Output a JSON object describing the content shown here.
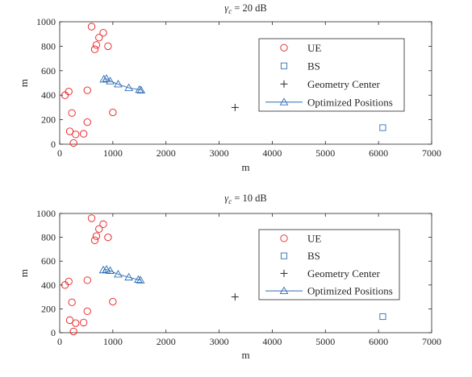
{
  "chart_data": [
    {
      "type": "scatter",
      "title_symbol": "γ",
      "title_subscript": "c",
      "title_rest": " = 20 dB",
      "xlabel": "m",
      "ylabel": "m",
      "xlim": [
        0,
        7000
      ],
      "ylim": [
        0,
        1000
      ],
      "xticks": [
        0,
        1000,
        2000,
        3000,
        4000,
        5000,
        6000,
        7000
      ],
      "yticks": [
        0,
        200,
        400,
        600,
        800,
        1000
      ],
      "grid": false,
      "legend_position": "top-right",
      "series": [
        {
          "name": "UE",
          "marker": "circle",
          "color": "#e8191c",
          "points": [
            [
              600,
              960
            ],
            [
              820,
              910
            ],
            [
              740,
              870
            ],
            [
              910,
              800
            ],
            [
              690,
              810
            ],
            [
              660,
              775
            ],
            [
              520,
              440
            ],
            [
              170,
              430
            ],
            [
              100,
              400
            ],
            [
              230,
              255
            ],
            [
              520,
              180
            ],
            [
              190,
              105
            ],
            [
              300,
              80
            ],
            [
              450,
              85
            ],
            [
              260,
              10
            ],
            [
              1000,
              260
            ]
          ]
        },
        {
          "name": "BS",
          "marker": "square",
          "color": "#2f6db5",
          "points": [
            [
              6080,
              135
            ]
          ]
        },
        {
          "name": "Geometry Center",
          "marker": "plus",
          "color": "#262626",
          "points": [
            [
              3300,
              300
            ]
          ]
        },
        {
          "name": "Optimized Positions",
          "marker": "triangle-line",
          "color": "#2f6db5",
          "points": [
            [
              830,
              530
            ],
            [
              880,
              535
            ],
            [
              950,
              515
            ],
            [
              1100,
              490
            ],
            [
              1300,
              460
            ],
            [
              1500,
              445
            ],
            [
              1530,
              440
            ]
          ]
        }
      ]
    },
    {
      "type": "scatter",
      "title_symbol": "γ",
      "title_subscript": "c",
      "title_rest": " = 10 dB",
      "xlabel": "m",
      "ylabel": "m",
      "xlim": [
        0,
        7000
      ],
      "ylim": [
        0,
        1000
      ],
      "xticks": [
        0,
        1000,
        2000,
        3000,
        4000,
        5000,
        6000,
        7000
      ],
      "yticks": [
        0,
        200,
        400,
        600,
        800,
        1000
      ],
      "grid": false,
      "legend_position": "top-right",
      "series": [
        {
          "name": "UE",
          "marker": "circle",
          "color": "#e8191c",
          "points": [
            [
              600,
              960
            ],
            [
              820,
              910
            ],
            [
              740,
              870
            ],
            [
              910,
              800
            ],
            [
              690,
              810
            ],
            [
              660,
              775
            ],
            [
              520,
              440
            ],
            [
              170,
              430
            ],
            [
              100,
              400
            ],
            [
              230,
              255
            ],
            [
              520,
              180
            ],
            [
              190,
              105
            ],
            [
              300,
              80
            ],
            [
              450,
              85
            ],
            [
              260,
              10
            ],
            [
              1000,
              260
            ]
          ]
        },
        {
          "name": "BS",
          "marker": "square",
          "color": "#2f6db5",
          "points": [
            [
              6080,
              135
            ]
          ]
        },
        {
          "name": "Geometry Center",
          "marker": "plus",
          "color": "#262626",
          "points": [
            [
              3300,
              300
            ]
          ]
        },
        {
          "name": "Optimized Positions",
          "marker": "triangle-line",
          "color": "#2f6db5",
          "points": [
            [
              820,
              525
            ],
            [
              880,
              530
            ],
            [
              950,
              520
            ],
            [
              1100,
              490
            ],
            [
              1300,
              465
            ],
            [
              1480,
              445
            ],
            [
              1520,
              440
            ]
          ]
        }
      ]
    }
  ]
}
